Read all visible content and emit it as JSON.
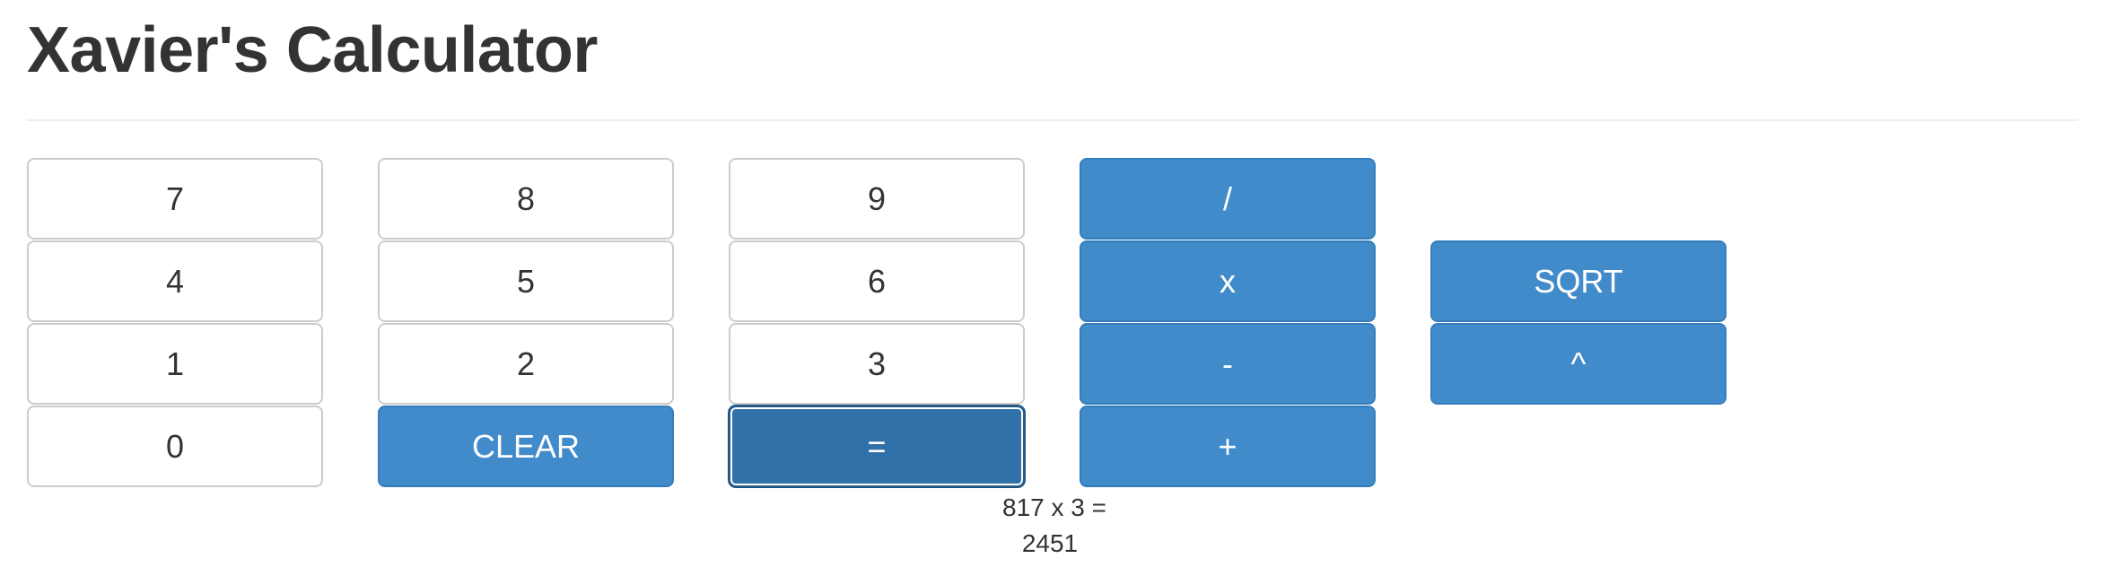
{
  "header": {
    "title": "Xavier's Calculator"
  },
  "keypad": {
    "seven": "7",
    "eight": "8",
    "nine": "9",
    "divide": "/",
    "four": "4",
    "five": "5",
    "six": "6",
    "multiply": "x",
    "sqrt": "SQRT",
    "one": "1",
    "two": "2",
    "three": "3",
    "subtract": "-",
    "power": "^",
    "zero": "0",
    "clear": "CLEAR",
    "equals": "=",
    "add": "+"
  },
  "display": {
    "expression": "817 x 3 =",
    "result": "2451"
  },
  "colors": {
    "primary": "#428bca",
    "primary_active": "#3071a9",
    "default_border": "#cccccc",
    "text": "#333333"
  }
}
